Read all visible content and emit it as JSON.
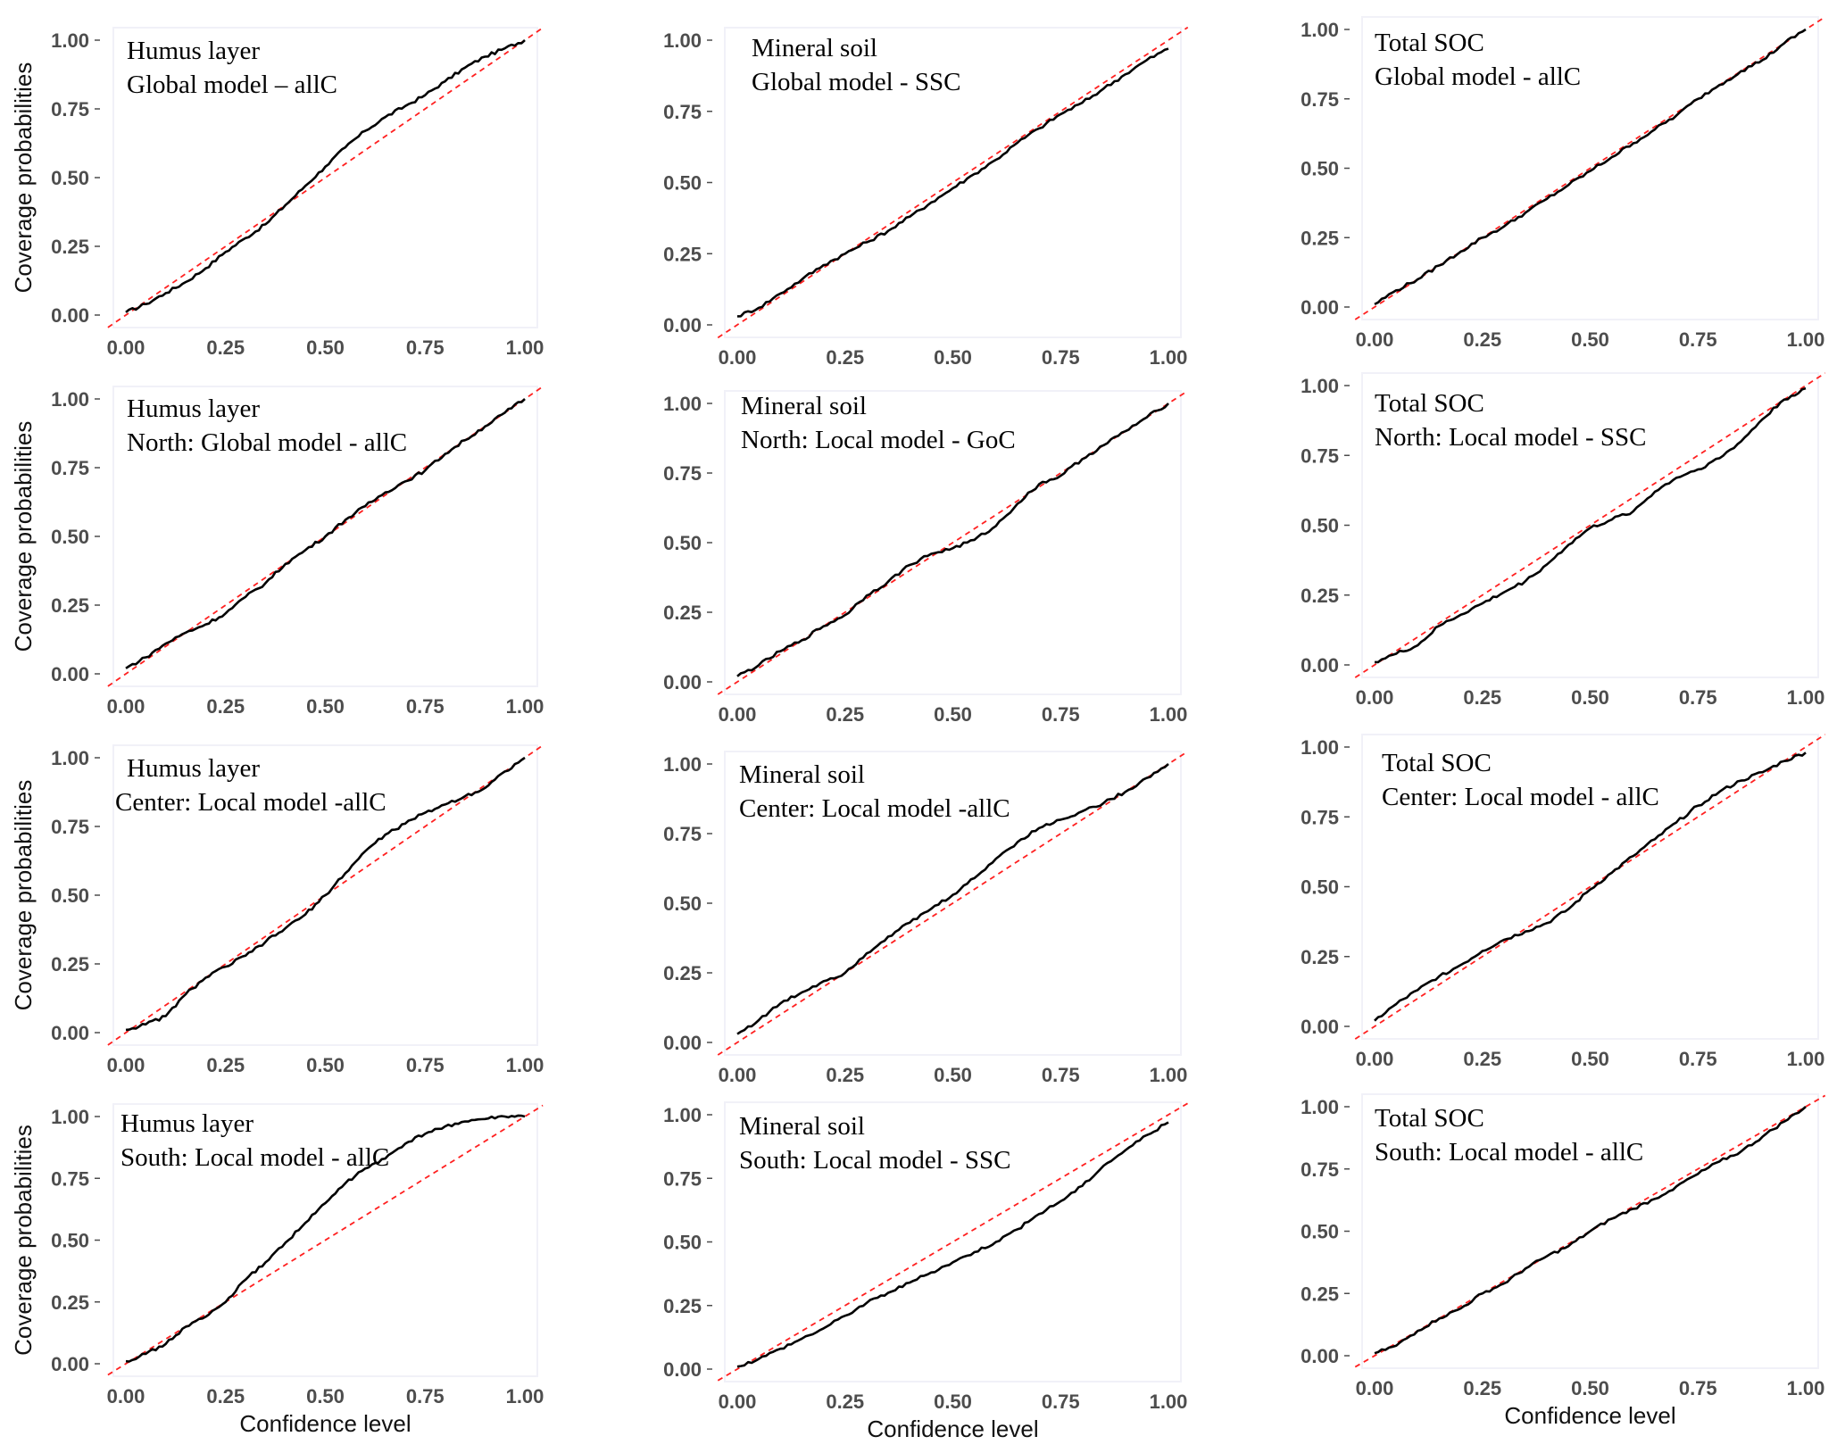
{
  "figure": {
    "x_axis_title": "Confidence level",
    "y_axis_title": "Coverage probabilities",
    "colors": {
      "curve": "#000000",
      "reference_line": "#ff2020",
      "tick_text": "#4d4d4d"
    }
  },
  "chart_data": [
    {
      "type": "line",
      "region": "Humus layer",
      "title": [
        "Humus layer",
        "Global model – allC"
      ],
      "xlabel": "",
      "ylabel": "Coverage probabilities",
      "xlim": [
        0,
        1
      ],
      "ylim": [
        0,
        1
      ],
      "xticks": [
        "0.00",
        "0.25",
        "0.50",
        "0.75",
        "1.00"
      ],
      "yticks": [
        "0.00",
        "0.25",
        "0.50",
        "0.75",
        "1.00"
      ],
      "reference_line": "y = x",
      "series": [
        {
          "name": "coverage",
          "x": [
            0,
            0.05,
            0.1,
            0.15,
            0.2,
            0.25,
            0.3,
            0.35,
            0.4,
            0.45,
            0.5,
            0.55,
            0.6,
            0.65,
            0.7,
            0.75,
            0.8,
            0.85,
            0.9,
            0.95,
            1.0
          ],
          "y": [
            0.01,
            0.04,
            0.08,
            0.12,
            0.17,
            0.23,
            0.28,
            0.33,
            0.4,
            0.47,
            0.54,
            0.61,
            0.67,
            0.72,
            0.76,
            0.8,
            0.85,
            0.9,
            0.94,
            0.97,
            1.0
          ]
        }
      ]
    },
    {
      "type": "line",
      "region": "Mineral soil",
      "title": [
        "Mineral soil",
        "Global model - SSC"
      ],
      "xlabel": "",
      "ylabel": "",
      "xlim": [
        0,
        1
      ],
      "ylim": [
        0,
        1
      ],
      "xticks": [
        "0.00",
        "0.25",
        "0.50",
        "0.75",
        "1.00"
      ],
      "yticks": [
        "0.00",
        "0.25",
        "0.50",
        "0.75",
        "1.00"
      ],
      "reference_line": "y = x",
      "series": [
        {
          "name": "coverage",
          "x": [
            0,
            0.05,
            0.1,
            0.15,
            0.2,
            0.25,
            0.3,
            0.35,
            0.4,
            0.45,
            0.5,
            0.55,
            0.6,
            0.65,
            0.7,
            0.75,
            0.8,
            0.85,
            0.9,
            0.95,
            1.0
          ],
          "y": [
            0.03,
            0.06,
            0.11,
            0.16,
            0.21,
            0.25,
            0.29,
            0.33,
            0.38,
            0.43,
            0.48,
            0.53,
            0.58,
            0.64,
            0.69,
            0.74,
            0.78,
            0.83,
            0.88,
            0.93,
            0.97
          ]
        }
      ]
    },
    {
      "type": "line",
      "region": "Total SOC",
      "title": [
        "Total SOC",
        "Global model - allC"
      ],
      "xlabel": "",
      "ylabel": "",
      "xlim": [
        0,
        1
      ],
      "ylim": [
        0,
        1
      ],
      "xticks": [
        "0.00",
        "0.25",
        "0.50",
        "0.75",
        "1.00"
      ],
      "yticks": [
        "0.00",
        "0.25",
        "0.50",
        "0.75",
        "1.00"
      ],
      "reference_line": "y = x",
      "series": [
        {
          "name": "coverage",
          "x": [
            0,
            0.05,
            0.1,
            0.15,
            0.2,
            0.25,
            0.3,
            0.35,
            0.4,
            0.45,
            0.5,
            0.55,
            0.6,
            0.65,
            0.7,
            0.75,
            0.8,
            0.85,
            0.9,
            0.95,
            1.0
          ],
          "y": [
            0.01,
            0.06,
            0.1,
            0.15,
            0.2,
            0.25,
            0.29,
            0.34,
            0.39,
            0.44,
            0.49,
            0.54,
            0.59,
            0.64,
            0.69,
            0.75,
            0.8,
            0.85,
            0.89,
            0.95,
            1.0
          ]
        }
      ]
    },
    {
      "type": "line",
      "region": "Humus layer",
      "title": [
        "Humus layer",
        "North: Global model - allC"
      ],
      "xlabel": "",
      "ylabel": "Coverage probabilities",
      "xlim": [
        0,
        1
      ],
      "ylim": [
        0,
        1
      ],
      "xticks": [
        "0.00",
        "0.25",
        "0.50",
        "0.75",
        "1.00"
      ],
      "yticks": [
        "0.00",
        "0.25",
        "0.50",
        "0.75",
        "1.00"
      ],
      "reference_line": "y = x",
      "series": [
        {
          "name": "coverage",
          "x": [
            0,
            0.05,
            0.1,
            0.15,
            0.2,
            0.25,
            0.3,
            0.35,
            0.4,
            0.45,
            0.5,
            0.55,
            0.6,
            0.65,
            0.7,
            0.75,
            0.8,
            0.85,
            0.9,
            0.95,
            1.0
          ],
          "y": [
            0.02,
            0.06,
            0.11,
            0.15,
            0.18,
            0.22,
            0.28,
            0.33,
            0.4,
            0.45,
            0.5,
            0.56,
            0.61,
            0.66,
            0.7,
            0.74,
            0.8,
            0.85,
            0.9,
            0.95,
            1.0
          ]
        }
      ]
    },
    {
      "type": "line",
      "region": "Mineral soil",
      "title": [
        "Mineral soil",
        "North: Local model - GoC"
      ],
      "xlabel": "",
      "ylabel": "",
      "xlim": [
        0,
        1
      ],
      "ylim": [
        0,
        1
      ],
      "xticks": [
        "0.00",
        "0.25",
        "0.50",
        "0.75",
        "1.00"
      ],
      "yticks": [
        "0.00",
        "0.25",
        "0.50",
        "0.75",
        "1.00"
      ],
      "reference_line": "y = x",
      "series": [
        {
          "name": "coverage",
          "x": [
            0,
            0.05,
            0.1,
            0.15,
            0.2,
            0.25,
            0.3,
            0.35,
            0.4,
            0.45,
            0.5,
            0.55,
            0.6,
            0.65,
            0.7,
            0.75,
            0.8,
            0.85,
            0.9,
            0.95,
            1.0
          ],
          "y": [
            0.02,
            0.06,
            0.11,
            0.15,
            0.2,
            0.24,
            0.31,
            0.36,
            0.42,
            0.46,
            0.48,
            0.51,
            0.56,
            0.64,
            0.71,
            0.74,
            0.8,
            0.85,
            0.9,
            0.95,
            1.0
          ]
        }
      ]
    },
    {
      "type": "line",
      "region": "Total SOC",
      "title": [
        "Total SOC",
        "North: Local model - SSC"
      ],
      "xlabel": "",
      "ylabel": "",
      "xlim": [
        0,
        1
      ],
      "ylim": [
        0,
        1
      ],
      "xticks": [
        "0.00",
        "0.25",
        "0.50",
        "0.75",
        "1.00"
      ],
      "yticks": [
        "0.00",
        "0.25",
        "0.50",
        "0.75",
        "1.00"
      ],
      "reference_line": "y = x",
      "series": [
        {
          "name": "coverage",
          "x": [
            0,
            0.05,
            0.1,
            0.15,
            0.2,
            0.25,
            0.3,
            0.35,
            0.4,
            0.45,
            0.5,
            0.55,
            0.6,
            0.65,
            0.7,
            0.75,
            0.8,
            0.85,
            0.9,
            0.95,
            1.0
          ],
          "y": [
            0.01,
            0.04,
            0.07,
            0.14,
            0.18,
            0.22,
            0.26,
            0.3,
            0.36,
            0.43,
            0.49,
            0.52,
            0.55,
            0.62,
            0.67,
            0.7,
            0.74,
            0.8,
            0.88,
            0.95,
            0.99
          ]
        }
      ]
    },
    {
      "type": "line",
      "region": "Humus layer",
      "title": [
        "Humus layer",
        "Center: Local model -allC"
      ],
      "xlabel": "",
      "ylabel": "Coverage probabilities",
      "xlim": [
        0,
        1
      ],
      "ylim": [
        0,
        1
      ],
      "xticks": [
        "0.00",
        "0.25",
        "0.50",
        "0.75",
        "1.00"
      ],
      "yticks": [
        "0.00",
        "0.25",
        "0.50",
        "0.75",
        "1.00"
      ],
      "reference_line": "y = x",
      "series": [
        {
          "name": "coverage",
          "x": [
            0,
            0.05,
            0.1,
            0.15,
            0.2,
            0.25,
            0.3,
            0.35,
            0.4,
            0.45,
            0.5,
            0.55,
            0.6,
            0.65,
            0.7,
            0.75,
            0.8,
            0.85,
            0.9,
            0.95,
            1.0
          ],
          "y": [
            0.01,
            0.03,
            0.06,
            0.14,
            0.2,
            0.24,
            0.28,
            0.33,
            0.38,
            0.43,
            0.5,
            0.58,
            0.66,
            0.72,
            0.76,
            0.8,
            0.83,
            0.86,
            0.89,
            0.95,
            1.0
          ]
        }
      ]
    },
    {
      "type": "line",
      "region": "Mineral soil",
      "title": [
        "Mineral soil",
        "Center: Local model -allC"
      ],
      "xlabel": "",
      "ylabel": "",
      "xlim": [
        0,
        1
      ],
      "ylim": [
        0,
        1
      ],
      "xticks": [
        "0.00",
        "0.25",
        "0.50",
        "0.75",
        "1.00"
      ],
      "yticks": [
        "0.00",
        "0.25",
        "0.50",
        "0.75",
        "1.00"
      ],
      "reference_line": "y = x",
      "series": [
        {
          "name": "coverage",
          "x": [
            0,
            0.05,
            0.1,
            0.15,
            0.2,
            0.25,
            0.3,
            0.35,
            0.4,
            0.45,
            0.5,
            0.55,
            0.6,
            0.65,
            0.7,
            0.75,
            0.8,
            0.85,
            0.9,
            0.95,
            1.0
          ],
          "y": [
            0.03,
            0.08,
            0.14,
            0.18,
            0.22,
            0.25,
            0.32,
            0.38,
            0.43,
            0.48,
            0.53,
            0.59,
            0.66,
            0.72,
            0.77,
            0.8,
            0.83,
            0.86,
            0.9,
            0.95,
            1.0
          ]
        }
      ]
    },
    {
      "type": "line",
      "region": "Total SOC",
      "title": [
        "Total SOC",
        "Center: Local model - allC"
      ],
      "xlabel": "",
      "ylabel": "",
      "xlim": [
        0,
        1
      ],
      "ylim": [
        0,
        1
      ],
      "xticks": [
        "0.00",
        "0.25",
        "0.50",
        "0.75",
        "1.00"
      ],
      "yticks": [
        "0.00",
        "0.25",
        "0.50",
        "0.75",
        "1.00"
      ],
      "reference_line": "y = x",
      "series": [
        {
          "name": "coverage",
          "x": [
            0,
            0.05,
            0.1,
            0.15,
            0.2,
            0.25,
            0.3,
            0.35,
            0.4,
            0.45,
            0.5,
            0.55,
            0.6,
            0.65,
            0.7,
            0.75,
            0.8,
            0.85,
            0.9,
            0.95,
            1.0
          ],
          "y": [
            0.02,
            0.08,
            0.13,
            0.18,
            0.22,
            0.27,
            0.31,
            0.34,
            0.37,
            0.42,
            0.49,
            0.55,
            0.61,
            0.67,
            0.73,
            0.79,
            0.84,
            0.88,
            0.91,
            0.95,
            0.98
          ]
        }
      ]
    },
    {
      "type": "line",
      "region": "Humus layer",
      "title": [
        "Humus layer",
        "South: Local model - allC"
      ],
      "xlabel": "Confidence level",
      "ylabel": "Coverage probabilities",
      "xlim": [
        0,
        1
      ],
      "ylim": [
        0,
        1
      ],
      "xticks": [
        "0.00",
        "0.25",
        "0.50",
        "0.75",
        "1.00"
      ],
      "yticks": [
        "0.00",
        "0.25",
        "0.50",
        "0.75",
        "1.00"
      ],
      "reference_line": "y = x",
      "series": [
        {
          "name": "coverage",
          "x": [
            0,
            0.05,
            0.1,
            0.15,
            0.2,
            0.25,
            0.3,
            0.35,
            0.4,
            0.45,
            0.5,
            0.55,
            0.6,
            0.65,
            0.7,
            0.75,
            0.8,
            0.85,
            0.9,
            0.95,
            1.0
          ],
          "y": [
            0.01,
            0.04,
            0.08,
            0.15,
            0.19,
            0.25,
            0.34,
            0.41,
            0.49,
            0.57,
            0.65,
            0.73,
            0.79,
            0.83,
            0.89,
            0.93,
            0.96,
            0.98,
            0.99,
            1.0,
            1.0
          ]
        }
      ]
    },
    {
      "type": "line",
      "region": "Mineral soil",
      "title": [
        "Mineral soil",
        "South: Local model - SSC"
      ],
      "xlabel": "Confidence level",
      "ylabel": "",
      "xlim": [
        0,
        1
      ],
      "ylim": [
        0,
        1
      ],
      "xticks": [
        "0.00",
        "0.25",
        "0.50",
        "0.75",
        "1.00"
      ],
      "yticks": [
        "0.00",
        "0.25",
        "0.50",
        "0.75",
        "1.00"
      ],
      "reference_line": "y = x",
      "series": [
        {
          "name": "coverage",
          "x": [
            0,
            0.05,
            0.1,
            0.15,
            0.2,
            0.25,
            0.3,
            0.35,
            0.4,
            0.45,
            0.5,
            0.55,
            0.6,
            0.65,
            0.7,
            0.75,
            0.8,
            0.85,
            0.9,
            0.95,
            1.0
          ],
          "y": [
            0.01,
            0.04,
            0.08,
            0.12,
            0.16,
            0.21,
            0.26,
            0.3,
            0.34,
            0.38,
            0.42,
            0.46,
            0.5,
            0.55,
            0.61,
            0.66,
            0.72,
            0.8,
            0.86,
            0.92,
            0.97
          ]
        }
      ]
    },
    {
      "type": "line",
      "region": "Total SOC",
      "title": [
        "Total SOC",
        "South: Local model - allC"
      ],
      "xlabel": "Confidence level",
      "ylabel": "",
      "xlim": [
        0,
        1
      ],
      "ylim": [
        0,
        1
      ],
      "xticks": [
        "0.00",
        "0.25",
        "0.50",
        "0.75",
        "1.00"
      ],
      "yticks": [
        "0.00",
        "0.25",
        "0.50",
        "0.75",
        "1.00"
      ],
      "reference_line": "y = x",
      "series": [
        {
          "name": "coverage",
          "x": [
            0,
            0.05,
            0.1,
            0.15,
            0.2,
            0.25,
            0.3,
            0.35,
            0.4,
            0.45,
            0.5,
            0.55,
            0.6,
            0.65,
            0.7,
            0.75,
            0.8,
            0.85,
            0.9,
            0.95,
            1.0
          ],
          "y": [
            0.01,
            0.04,
            0.1,
            0.15,
            0.19,
            0.25,
            0.29,
            0.35,
            0.4,
            0.44,
            0.5,
            0.55,
            0.59,
            0.63,
            0.68,
            0.73,
            0.78,
            0.82,
            0.88,
            0.94,
            1.0
          ]
        }
      ]
    }
  ]
}
